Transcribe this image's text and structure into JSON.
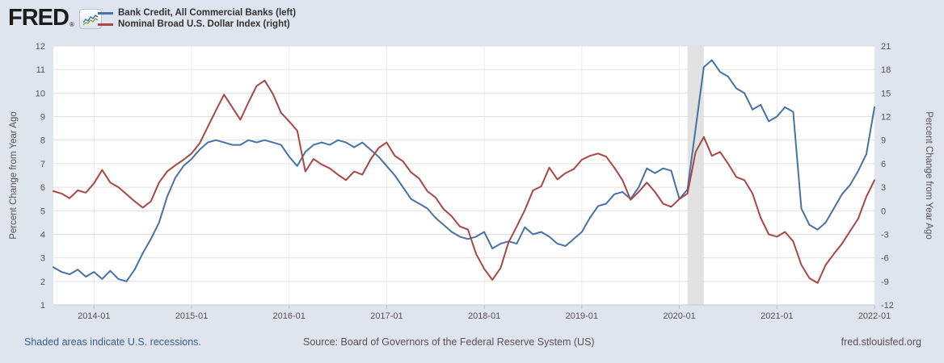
{
  "header": {
    "logo_text": "FRED",
    "logo_reg": "®",
    "legend": [
      {
        "label": "Bank Credit, All Commercial Banks (left)",
        "color": "#4572a7"
      },
      {
        "label": "Nominal Broad U.S. Dollar Index (right)",
        "color": "#aa4643"
      }
    ]
  },
  "footer": {
    "recession_note": "Shaded areas indicate U.S. recessions.",
    "source": "Source: Board of Governors of the Federal Reserve System (US)",
    "site": "fred.stlouisfed.org"
  },
  "colors": {
    "page_bg": "#dee5ee",
    "plot_bg": "#ffffff",
    "grid": "#e0e0e0",
    "vgrid": "#ececec",
    "axis_line": "#c9ccd1",
    "tick_mark": "#b6bdc9",
    "tick_text": "#555555",
    "axis_title_text": "#555555",
    "recession_band": "#e2e2e2",
    "series_blue": "#4572a7",
    "series_red": "#aa4643",
    "link_blue": "#3e5c94"
  },
  "chart_data": {
    "type": "line",
    "frequency": "monthly",
    "x_start": "2013-08",
    "x_end": "2022-01",
    "x_tick_labels": [
      "2014-01",
      "2015-01",
      "2016-01",
      "2017-01",
      "2018-01",
      "2019-01",
      "2020-01",
      "2021-01",
      "2022-01"
    ],
    "x_tick_month_index": [
      5,
      17,
      29,
      41,
      53,
      65,
      77,
      89,
      101
    ],
    "left_axis": {
      "title": "Percent Change from Year Ago",
      "min": 1,
      "max": 12,
      "ticks": [
        12,
        11,
        10,
        9,
        8,
        7,
        6,
        5,
        4,
        3,
        2,
        1
      ]
    },
    "right_axis": {
      "title": "Percent Change from Year Ago",
      "min": -12,
      "max": 21,
      "ticks": [
        21,
        18,
        15,
        12,
        9,
        6,
        3,
        0,
        -3,
        -6,
        -9,
        -12
      ]
    },
    "recession_bands": [
      {
        "start_index": 78,
        "end_index": 80
      }
    ],
    "grid": true,
    "legend_position": "top-left-header",
    "series": [
      {
        "name": "Bank Credit, All Commercial Banks (left)",
        "axis": "left",
        "color": "#4572a7",
        "values": [
          2.6,
          2.4,
          2.3,
          2.5,
          2.2,
          2.4,
          2.1,
          2.45,
          2.1,
          2.0,
          2.5,
          3.2,
          3.8,
          4.5,
          5.6,
          6.4,
          6.9,
          7.2,
          7.6,
          7.9,
          8.0,
          7.9,
          7.8,
          7.8,
          8.0,
          7.9,
          8.0,
          7.9,
          7.8,
          7.3,
          6.9,
          7.5,
          7.8,
          7.9,
          7.8,
          8.0,
          7.9,
          7.7,
          7.9,
          7.6,
          7.3,
          6.9,
          6.5,
          6.0,
          5.5,
          5.3,
          5.1,
          4.7,
          4.4,
          4.1,
          3.9,
          3.8,
          3.9,
          4.1,
          3.4,
          3.6,
          3.7,
          3.6,
          4.3,
          4.0,
          4.1,
          3.9,
          3.6,
          3.5,
          3.8,
          4.1,
          4.7,
          5.2,
          5.3,
          5.7,
          5.8,
          5.5,
          6.0,
          6.8,
          6.6,
          6.8,
          6.7,
          5.5,
          5.9,
          8.5,
          11.1,
          11.4,
          10.9,
          10.7,
          10.2,
          10.0,
          9.3,
          9.5,
          8.8,
          9.0,
          9.4,
          9.2,
          5.1,
          4.4,
          4.2,
          4.5,
          5.1,
          5.7,
          6.1,
          6.7,
          7.4,
          9.4
        ]
      },
      {
        "name": "Nominal Broad U.S. Dollar Index (right)",
        "axis": "right",
        "color": "#aa4643",
        "values": [
          2.5,
          2.2,
          1.6,
          2.6,
          2.3,
          3.5,
          5.2,
          3.6,
          3.0,
          2.1,
          1.2,
          0.4,
          1.2,
          3.6,
          5.0,
          5.8,
          6.5,
          7.3,
          8.6,
          10.7,
          12.8,
          14.8,
          13.2,
          11.6,
          13.8,
          15.9,
          16.6,
          14.9,
          12.5,
          11.4,
          10.2,
          5.0,
          6.6,
          5.9,
          5.4,
          4.6,
          3.9,
          5.0,
          4.6,
          6.5,
          8.0,
          8.7,
          7.0,
          6.3,
          4.9,
          4.1,
          2.5,
          1.7,
          0.2,
          -0.7,
          -2.0,
          -2.4,
          -5.5,
          -7.4,
          -8.8,
          -7.3,
          -4.0,
          -2.0,
          0.1,
          2.6,
          3.1,
          5.5,
          4.0,
          4.8,
          5.3,
          6.5,
          7.0,
          7.3,
          6.9,
          5.5,
          3.9,
          1.4,
          2.4,
          3.6,
          2.4,
          0.9,
          0.5,
          1.5,
          2.2,
          7.5,
          9.4,
          7.0,
          7.5,
          6.0,
          4.3,
          3.9,
          2.2,
          -0.9,
          -3.0,
          -3.3,
          -2.7,
          -3.9,
          -6.9,
          -8.6,
          -9.2,
          -6.9,
          -5.5,
          -4.2,
          -2.6,
          -1.0,
          1.8,
          3.9
        ]
      }
    ]
  }
}
